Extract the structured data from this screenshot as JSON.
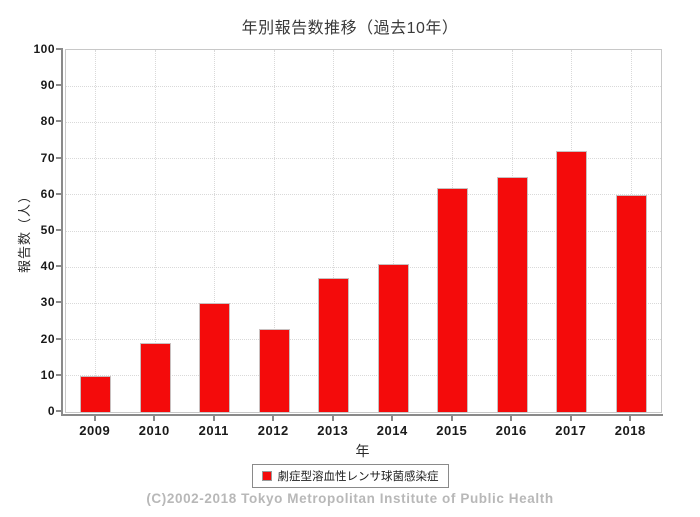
{
  "page": {
    "footer": "(C)2002-2018 Tokyo Metropolitan Institute of Public Health"
  },
  "chart_data": {
    "type": "bar",
    "title": "年別報告数推移（過去10年）",
    "categories": [
      "2009",
      "2010",
      "2011",
      "2012",
      "2013",
      "2014",
      "2015",
      "2016",
      "2017",
      "2018"
    ],
    "values": [
      10,
      19,
      30,
      23,
      37,
      41,
      62,
      65,
      72,
      60
    ],
    "xlabel": "年",
    "ylabel": "報告数（人）",
    "ylim": [
      0,
      100
    ],
    "ytick_step": 10,
    "grid": true,
    "legend": {
      "position": "bottom",
      "entries": [
        {
          "label": "劇症型溶血性レンサ球菌感染症",
          "color": "#f40b0b"
        }
      ]
    },
    "bar_color": "#f40b0b"
  },
  "colors": {
    "bar": "#f40b0b",
    "grid": "#d9d9d9",
    "axis": "#8a8a8a",
    "plot_border": "#c8c8c8",
    "footer_text": "#b8b8b8"
  }
}
